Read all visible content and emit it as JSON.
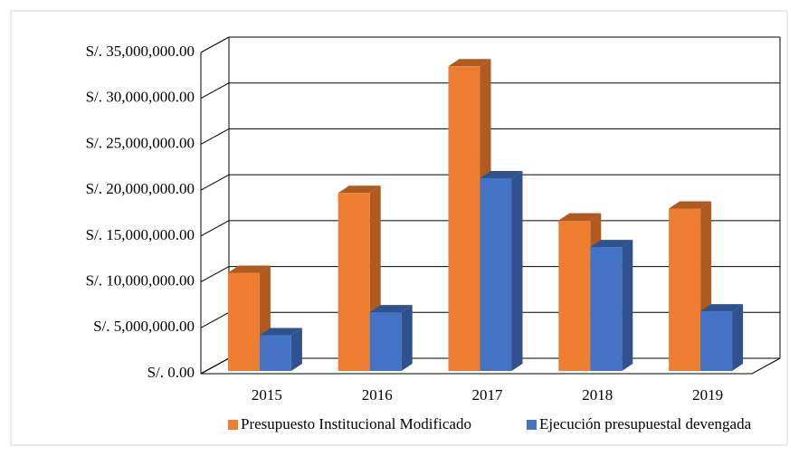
{
  "chart_data": {
    "type": "bar3d",
    "categories": [
      "2015",
      "2016",
      "2017",
      "2018",
      "2019"
    ],
    "series": [
      {
        "name": "Presupuesto Institucional Modificado",
        "color": "#ed7d31",
        "side": "#ae5a21",
        "values": [
          10700000,
          19400000,
          33200000,
          16400000,
          17700000
        ]
      },
      {
        "name": "Ejecución presupuestal devengada",
        "color": "#4472c4",
        "side": "#2f528f",
        "values": [
          3900000,
          6400000,
          21000000,
          13500000,
          6500000
        ]
      }
    ],
    "ylim": [
      0,
      35000000
    ],
    "yticks": [
      {
        "value": 0,
        "label": "S/. 0.00"
      },
      {
        "value": 5000000,
        "label": "S/. 5,000,000.00"
      },
      {
        "value": 10000000,
        "label": "S/. 10,000,000.00"
      },
      {
        "value": 15000000,
        "label": "S/. 15,000,000.00"
      },
      {
        "value": 20000000,
        "label": "S/. 20,000,000.00"
      },
      {
        "value": 25000000,
        "label": "S/. 25,000,000.00"
      },
      {
        "value": 30000000,
        "label": "S/. 30,000,000.00"
      },
      {
        "value": 35000000,
        "label": "S/. 35,000,000.00"
      }
    ],
    "grid": true,
    "legend": "bottom"
  }
}
